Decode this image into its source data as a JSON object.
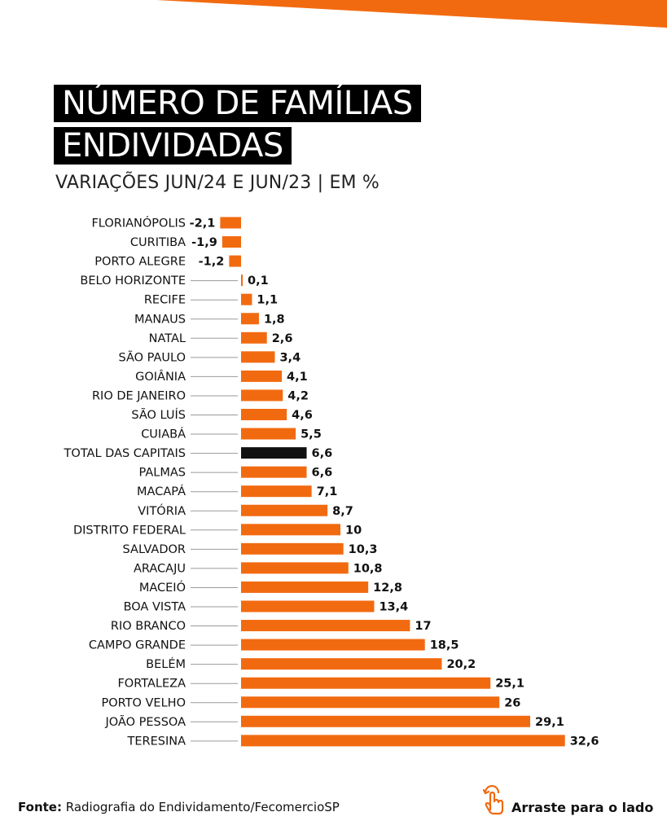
{
  "header": {
    "title_line_1": "NÚMERO DE FAMÍLIAS",
    "title_line_2": "ENDIVIDADAS",
    "subtitle": "VARIAÇÕES JUN/24 E JUN/23 | EM %"
  },
  "footer": {
    "source_label": "Fonte:",
    "source_text": " Radiografia do Endividamento/FecomercioSP",
    "swipe_label": "Arraste para o lado"
  },
  "icons": {
    "swipe": "swipe-hand-icon"
  },
  "colors": {
    "accent": "#f26a10",
    "highlight": "#111111",
    "text": "#111111"
  },
  "chart_data": {
    "type": "bar",
    "orientation": "horizontal",
    "title": "NÚMERO DE FAMÍLIAS ENDIVIDADAS",
    "subtitle": "VARIAÇÕES JUN/24 E JUN/23 | EM %",
    "categories": [
      "FLORIANÓPOLIS",
      "CURITIBA",
      "PORTO ALEGRE",
      "BELO HORIZONTE",
      "RECIFE",
      "MANAUS",
      "NATAL",
      "SÃO PAULO",
      "GOIÂNIA",
      "RIO DE JANEIRO",
      "SÃO LUÍS",
      "CUIABÁ",
      "TOTAL DAS CAPITAIS",
      "PALMAS",
      "MACAPÁ",
      "VITÓRIA",
      "DISTRITO FEDERAL",
      "SALVADOR",
      "ARACAJU",
      "MACEIÓ",
      "BOA VISTA",
      "RIO BRANCO",
      "CAMPO GRANDE",
      "BELÉM",
      "FORTALEZA",
      "PORTO VELHO",
      "JOÃO PESSOA",
      "TERESINA"
    ],
    "values": [
      -2.1,
      -1.9,
      -1.2,
      0.1,
      1.1,
      1.8,
      2.6,
      3.4,
      4.1,
      4.2,
      4.6,
      5.5,
      6.6,
      6.6,
      7.1,
      8.7,
      10,
      10.3,
      10.8,
      12.8,
      13.4,
      17,
      18.5,
      20.2,
      25.1,
      26,
      29.1,
      32.6
    ],
    "labels": [
      "-2,1",
      "-1,9",
      "-1,2",
      "0,1",
      "1,1",
      "1,8",
      "2,6",
      "3,4",
      "4,1",
      "4,2",
      "4,6",
      "5,5",
      "6,6",
      "6,6",
      "7,1",
      "8,7",
      "10",
      "10,3",
      "10,8",
      "12,8",
      "13,4",
      "17",
      "18,5",
      "20,2",
      "25,1",
      "26",
      "29,1",
      "32,6"
    ],
    "highlight_category": "TOTAL DAS CAPITAIS",
    "grid": false,
    "legend": "none"
  }
}
